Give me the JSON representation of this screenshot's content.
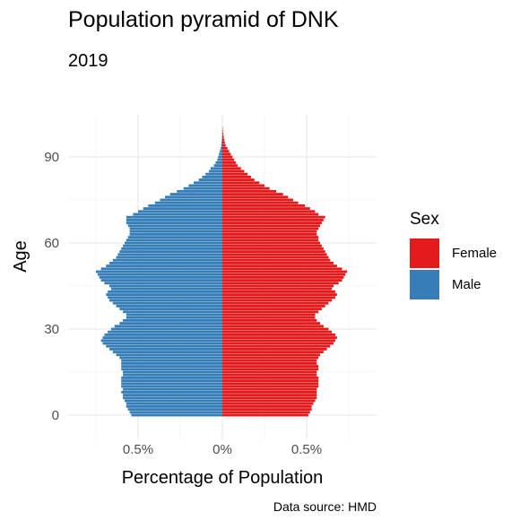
{
  "title": "Population pyramid of DNK",
  "subtitle": "2019",
  "caption": "Data source: HMD",
  "chart_data": {
    "type": "bar",
    "orientation": "horizontal",
    "xlabel": "Percentage of Population",
    "ylabel": "Age",
    "x_ticks": [
      "0.5%",
      "0%",
      "0.5%"
    ],
    "x_tick_values": [
      -0.5,
      0,
      0.5
    ],
    "y_ticks": [
      0,
      30,
      60,
      90
    ],
    "xlim": [
      -0.92,
      0.92
    ],
    "ylim": [
      -3,
      107
    ],
    "grid": true,
    "legend": {
      "title": "Sex",
      "position": "right"
    },
    "ages": [
      0,
      1,
      2,
      3,
      4,
      5,
      6,
      7,
      8,
      9,
      10,
      11,
      12,
      13,
      14,
      15,
      16,
      17,
      18,
      19,
      20,
      21,
      22,
      23,
      24,
      25,
      26,
      27,
      28,
      29,
      30,
      31,
      32,
      33,
      34,
      35,
      36,
      37,
      38,
      39,
      40,
      41,
      42,
      43,
      44,
      45,
      46,
      47,
      48,
      49,
      50,
      51,
      52,
      53,
      54,
      55,
      56,
      57,
      58,
      59,
      60,
      61,
      62,
      63,
      64,
      65,
      66,
      67,
      68,
      69,
      70,
      71,
      72,
      73,
      74,
      75,
      76,
      77,
      78,
      79,
      80,
      81,
      82,
      83,
      84,
      85,
      86,
      87,
      88,
      89,
      90,
      91,
      92,
      93,
      94,
      95,
      96,
      97,
      98,
      99,
      100
    ],
    "series": [
      {
        "name": "Female",
        "color": "#E41A1C",
        "values": [
          0.51,
          0.52,
          0.53,
          0.53,
          0.54,
          0.55,
          0.56,
          0.56,
          0.56,
          0.56,
          0.57,
          0.57,
          0.57,
          0.57,
          0.56,
          0.56,
          0.57,
          0.57,
          0.56,
          0.56,
          0.57,
          0.58,
          0.6,
          0.62,
          0.64,
          0.66,
          0.67,
          0.68,
          0.67,
          0.65,
          0.63,
          0.6,
          0.58,
          0.56,
          0.55,
          0.55,
          0.57,
          0.59,
          0.61,
          0.63,
          0.65,
          0.67,
          0.68,
          0.67,
          0.65,
          0.66,
          0.69,
          0.71,
          0.72,
          0.73,
          0.74,
          0.71,
          0.68,
          0.66,
          0.64,
          0.63,
          0.62,
          0.61,
          0.6,
          0.59,
          0.58,
          0.57,
          0.57,
          0.56,
          0.56,
          0.57,
          0.58,
          0.59,
          0.6,
          0.61,
          0.57,
          0.55,
          0.52,
          0.49,
          0.45,
          0.42,
          0.39,
          0.36,
          0.32,
          0.28,
          0.25,
          0.22,
          0.19,
          0.17,
          0.15,
          0.13,
          0.11,
          0.09,
          0.08,
          0.07,
          0.06,
          0.05,
          0.04,
          0.03,
          0.02,
          0.015,
          0.012,
          0.008,
          0.005,
          0.003,
          0.002
        ]
      },
      {
        "name": "Male",
        "color": "#377EB8",
        "values": [
          0.54,
          0.55,
          0.56,
          0.57,
          0.57,
          0.58,
          0.59,
          0.59,
          0.6,
          0.59,
          0.6,
          0.6,
          0.6,
          0.6,
          0.59,
          0.59,
          0.6,
          0.6,
          0.6,
          0.6,
          0.61,
          0.63,
          0.65,
          0.67,
          0.69,
          0.71,
          0.72,
          0.71,
          0.7,
          0.68,
          0.66,
          0.64,
          0.61,
          0.59,
          0.57,
          0.57,
          0.59,
          0.61,
          0.63,
          0.65,
          0.67,
          0.68,
          0.69,
          0.68,
          0.66,
          0.67,
          0.7,
          0.72,
          0.73,
          0.74,
          0.75,
          0.72,
          0.69,
          0.67,
          0.65,
          0.63,
          0.62,
          0.61,
          0.6,
          0.59,
          0.58,
          0.57,
          0.56,
          0.55,
          0.55,
          0.55,
          0.56,
          0.57,
          0.57,
          0.57,
          0.53,
          0.5,
          0.47,
          0.44,
          0.4,
          0.37,
          0.34,
          0.31,
          0.27,
          0.23,
          0.2,
          0.17,
          0.14,
          0.12,
          0.1,
          0.08,
          0.07,
          0.05,
          0.04,
          0.03,
          0.025,
          0.02,
          0.015,
          0.01,
          0.007,
          0.005,
          0.003,
          0.002,
          0.001,
          0.001,
          0.0005
        ]
      }
    ]
  }
}
